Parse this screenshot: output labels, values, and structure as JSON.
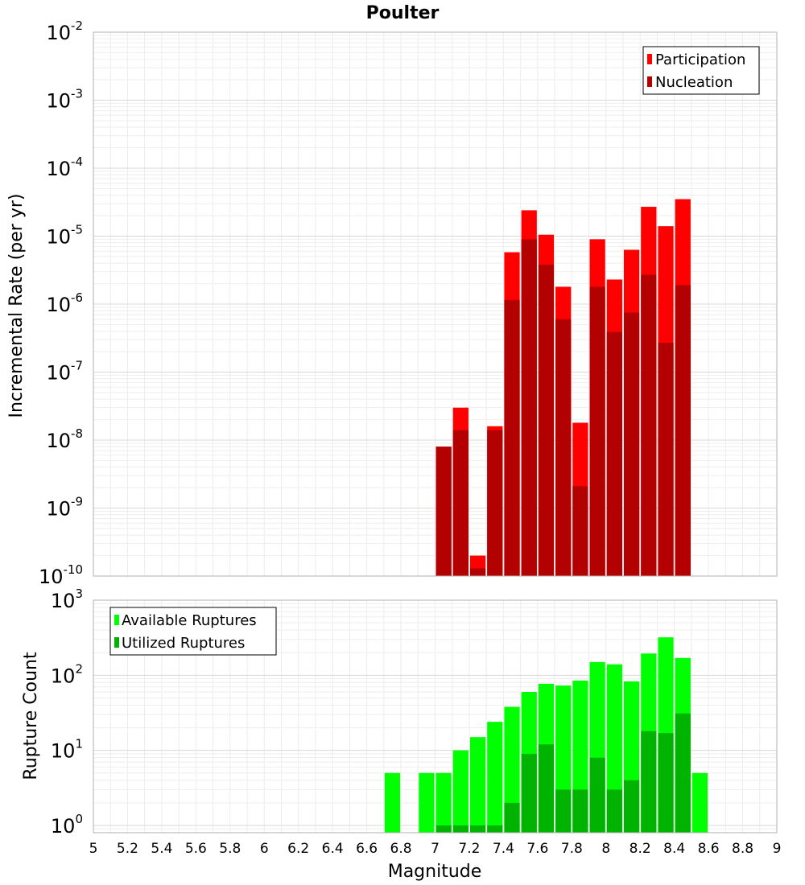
{
  "chart_data": [
    {
      "type": "bar",
      "title": "Poulter",
      "ylabel": "Incremental Rate (per yr)",
      "xlabel": "",
      "yscale": "log",
      "ylim": [
        1e-10,
        0.01
      ],
      "xlim": [
        5,
        9
      ],
      "ytick_labels": [
        {
          "value": 1e-10,
          "base": "10",
          "exp": "-10"
        },
        {
          "value": 1e-09,
          "base": "10",
          "exp": "-9"
        },
        {
          "value": 1e-08,
          "base": "10",
          "exp": "-8"
        },
        {
          "value": 1e-07,
          "base": "10",
          "exp": "-7"
        },
        {
          "value": 1e-06,
          "base": "10",
          "exp": "-6"
        },
        {
          "value": 1e-05,
          "base": "10",
          "exp": "-5"
        },
        {
          "value": 0.0001,
          "base": "10",
          "exp": "-4"
        },
        {
          "value": 0.001,
          "base": "10",
          "exp": "-3"
        },
        {
          "value": 0.01,
          "base": "10",
          "exp": "-2"
        }
      ],
      "legend_position": "top-right",
      "x": [
        7.0,
        7.1,
        7.2,
        7.3,
        7.4,
        7.5,
        7.6,
        7.7,
        7.8,
        7.9,
        8.0,
        8.1,
        8.2,
        8.3,
        8.4
      ],
      "series": [
        {
          "name": "Participation",
          "color": "#ff0000",
          "values": [
            8e-09,
            3e-08,
            2e-10,
            1.6e-08,
            5.8e-06,
            2.4e-05,
            1.05e-05,
            1.8e-06,
            1.8e-08,
            9e-06,
            2.3e-06,
            6.3e-06,
            2.7e-05,
            1.4e-05,
            3.5e-05
          ]
        },
        {
          "name": "Nucleation",
          "color": "#b30000",
          "values": [
            8e-09,
            1.4e-08,
            1.3e-10,
            1.4e-08,
            1.15e-06,
            9e-06,
            3.8e-06,
            6e-07,
            2.1e-09,
            1.8e-06,
            3.9e-07,
            7.5e-07,
            2.7e-06,
            2.7e-07,
            1.9e-06
          ]
        }
      ]
    },
    {
      "type": "bar",
      "title": "",
      "ylabel": "Rupture Count",
      "xlabel": "Magnitude",
      "yscale": "log",
      "ylim": [
        0.8,
        1000
      ],
      "xlim": [
        5,
        9
      ],
      "ytick_labels": [
        {
          "value": 1,
          "base": "10",
          "exp": "0"
        },
        {
          "value": 10,
          "base": "10",
          "exp": "1"
        },
        {
          "value": 100,
          "base": "10",
          "exp": "2"
        },
        {
          "value": 1000,
          "base": "10",
          "exp": "3"
        }
      ],
      "x_tick_labels": [
        "5",
        "5.2",
        "5.4",
        "5.6",
        "5.8",
        "6",
        "6.2",
        "6.4",
        "6.6",
        "6.8",
        "7",
        "7.2",
        "7.4",
        "7.6",
        "7.8",
        "8",
        "8.2",
        "8.4",
        "8.6",
        "8.8",
        "9"
      ],
      "legend_position": "top-left",
      "series": [
        {
          "name": "Available Ruptures",
          "color": "#00ff00",
          "x": [
            6.7,
            6.9,
            7.0,
            7.1,
            7.2,
            7.3,
            7.4,
            7.5,
            7.6,
            7.7,
            7.8,
            7.9,
            8.0,
            8.1,
            8.2,
            8.3,
            8.4,
            8.5
          ],
          "values": [
            5,
            5,
            5,
            10,
            15,
            24,
            38,
            60,
            77,
            73,
            85,
            150,
            140,
            83,
            195,
            320,
            170,
            5
          ]
        },
        {
          "name": "Utilized Ruptures",
          "color": "#00b300",
          "x": [
            7.0,
            7.1,
            7.2,
            7.3,
            7.4,
            7.5,
            7.6,
            7.7,
            7.8,
            7.9,
            8.0,
            8.1,
            8.2,
            8.3,
            8.4
          ],
          "values": [
            1,
            1,
            1,
            1,
            2,
            9,
            12,
            3,
            3,
            8,
            3,
            4,
            18,
            17,
            31
          ]
        }
      ]
    }
  ]
}
